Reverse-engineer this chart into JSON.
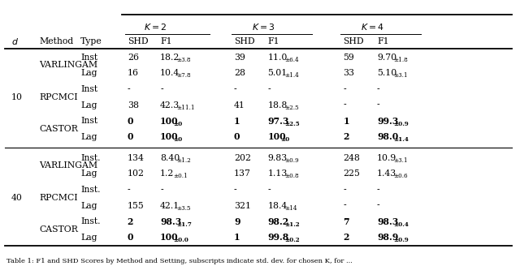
{
  "figsize": [
    6.4,
    3.28
  ],
  "dpi": 100,
  "rows": [
    [
      "10",
      "VARLINGAM",
      "Inst",
      "26",
      "18.2",
      "3.8",
      "39",
      "11.0",
      "6.4",
      "59",
      "9.70",
      "1.8"
    ],
    [
      "",
      "",
      "Lag",
      "16",
      "10.4",
      "7.8",
      "28",
      "5.01",
      "1.4",
      "33",
      "5.10",
      "3.1"
    ],
    [
      "",
      "RPCMCI",
      "Inst",
      "-",
      "-",
      "",
      "-",
      "-",
      "",
      "-",
      "-",
      ""
    ],
    [
      "",
      "",
      "Lag",
      "38",
      "42.3",
      "11.1",
      "41",
      "18.8",
      "2.5",
      "-",
      "-",
      ""
    ],
    [
      "",
      "CASTOR",
      "Inst",
      "0",
      "100",
      "0",
      "1",
      "97.3",
      "2.5",
      "1",
      "99.3",
      "0.9"
    ],
    [
      "",
      "",
      "Lag",
      "0",
      "100",
      "0",
      "0",
      "100",
      "0",
      "2",
      "98.0",
      "1.4"
    ],
    [
      "40",
      "VARLINGAM",
      "Inst.",
      "134",
      "8.40",
      "1.2",
      "202",
      "9.83",
      "0.9",
      "248",
      "10.9",
      "3.1"
    ],
    [
      "",
      "",
      "Lag",
      "102",
      "1.2",
      "0.1",
      "137",
      "1.13",
      "0.8",
      "225",
      "1.43",
      "0.6"
    ],
    [
      "",
      "RPCMCI",
      "Inst.",
      "-",
      "-",
      "",
      "-",
      "-",
      "",
      "-",
      "-",
      ""
    ],
    [
      "",
      "",
      "Lag",
      "155",
      "42.1",
      "3.5",
      "321",
      "18.4",
      "14",
      "-",
      "-",
      ""
    ],
    [
      "",
      "CASTOR",
      "Inst.",
      "2",
      "98.3",
      "1.7",
      "9",
      "98.2",
      "1.2",
      "7",
      "98.3",
      "0.4"
    ],
    [
      "",
      "",
      "Lag",
      "0",
      "100",
      "0.0",
      "1",
      "99.8",
      "0.2",
      "2",
      "98.9",
      "0.9"
    ]
  ],
  "bold_rows": [
    4,
    5,
    10,
    11
  ],
  "caption": "Table 1: F1 and SHD Scores by Method and Setting, subscripts indicate std. dev. for chosen K, for ..."
}
